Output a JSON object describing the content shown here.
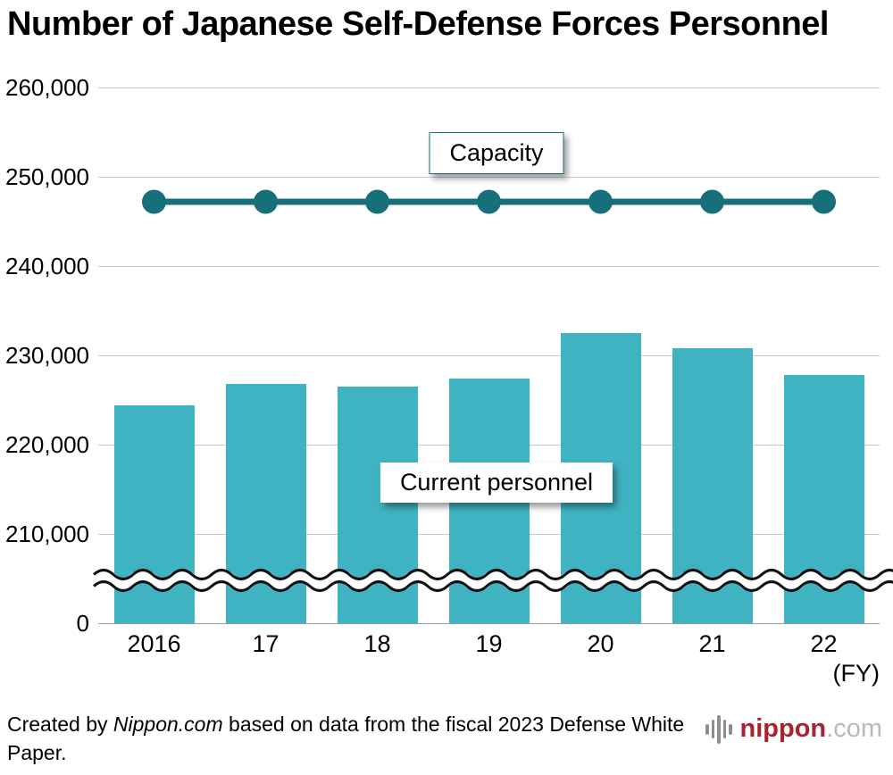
{
  "title": "Number of Japanese Self-Defense Forces Personnel",
  "chart_data": {
    "type": "bar",
    "title": "Number of Japanese Self-Defense Forces Personnel",
    "categories": [
      "2016",
      "17",
      "18",
      "19",
      "20",
      "21",
      "22"
    ],
    "series": [
      {
        "name": "Current personnel",
        "type": "bar",
        "values": [
          224400,
          226800,
          226500,
          227400,
          232500,
          230800,
          227800
        ]
      },
      {
        "name": "Capacity",
        "type": "line",
        "values": [
          247200,
          247200,
          247200,
          247200,
          247200,
          247200,
          247200
        ]
      }
    ],
    "xlabel": "(FY)",
    "ylabel": "",
    "y_ticks": [
      "260,000",
      "250,000",
      "240,000",
      "230,000",
      "220,000",
      "210,000",
      "0"
    ],
    "y_tick_values": [
      260000,
      250000,
      240000,
      230000,
      220000,
      210000,
      0
    ],
    "ylim_linear": [
      200000,
      260000
    ],
    "axis_break": true,
    "axis_break_note": "y-axis broken between 0 and 210,000 (double wavy line)",
    "grid": true,
    "legend_position": "inline-labels",
    "bar_color": "#3fb3c2",
    "line_color": "#166f79"
  },
  "footer": {
    "credit_prefix": "Created by ",
    "credit_source": "Nippon.com",
    "credit_suffix": " based on data from the fiscal 2023 Defense White Paper.",
    "logo_name": "nippon",
    "logo_tld": ".com",
    "logo_color": "#a8232d",
    "logo_icon": "soundwave-icon"
  }
}
